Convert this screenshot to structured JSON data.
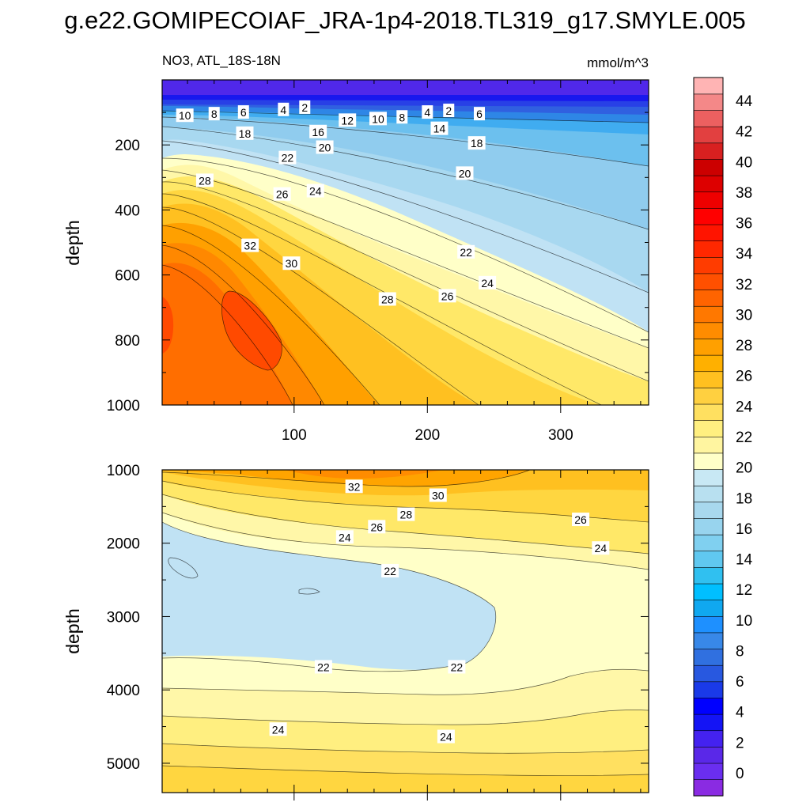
{
  "title": "g.e22.GOMIPECOIAF_JRA-1p4-2018.TL319_g17.SMYLE.005",
  "colors": {
    "palette": [
      "#8a2be2",
      "#6a2ef0",
      "#5a28e8",
      "#4422f0",
      "#1414f5",
      "#0000ff",
      "#1a3ae8",
      "#2858e0",
      "#3070e0",
      "#3888e8",
      "#1e90ff",
      "#10a8f0",
      "#00bfff",
      "#30c0f0",
      "#60c8f0",
      "#80d0f0",
      "#98d4ee",
      "#a8d8ee",
      "#b8e0f0",
      "#c8e8f4",
      "#ffffc8",
      "#fff5a0",
      "#ffef80",
      "#ffe060",
      "#ffd040",
      "#ffc020",
      "#ffb000",
      "#ffa000",
      "#ff8c00",
      "#ff7800",
      "#ff6400",
      "#ff5000",
      "#ff3c00",
      "#ff2800",
      "#ff1400",
      "#ff0000",
      "#ee0000",
      "#dd0000",
      "#cc0000",
      "#d82020",
      "#e24040",
      "#ec6060",
      "#f48888",
      "#ffb4b4"
    ]
  },
  "chart_data": [
    {
      "type": "heatmap",
      "name": "upper-panel",
      "left_title": "NO3, ATL_18S-18N",
      "right_title": "mmol/m^3",
      "ylabel": "depth",
      "xlabel": "",
      "xlim": [
        1,
        366
      ],
      "ylim": [
        1000,
        0
      ],
      "xticks": [
        100,
        200,
        300
      ],
      "yticks": [
        200,
        400,
        600,
        800,
        1000
      ],
      "contour_labels": [
        {
          "text": "10",
          "x": 18,
          "y": 110
        },
        {
          "text": "8",
          "x": 40,
          "y": 105
        },
        {
          "text": "6",
          "x": 62,
          "y": 100
        },
        {
          "text": "4",
          "x": 92,
          "y": 92
        },
        {
          "text": "2",
          "x": 108,
          "y": 85
        },
        {
          "text": "12",
          "x": 140,
          "y": 125
        },
        {
          "text": "10",
          "x": 163,
          "y": 120
        },
        {
          "text": "8",
          "x": 181,
          "y": 115
        },
        {
          "text": "4",
          "x": 200,
          "y": 100
        },
        {
          "text": "2",
          "x": 216,
          "y": 95
        },
        {
          "text": "6",
          "x": 239,
          "y": 105
        },
        {
          "text": "18",
          "x": 63,
          "y": 165
        },
        {
          "text": "16",
          "x": 118,
          "y": 160
        },
        {
          "text": "14",
          "x": 209,
          "y": 150
        },
        {
          "text": "20",
          "x": 123,
          "y": 208
        },
        {
          "text": "18",
          "x": 237,
          "y": 195
        },
        {
          "text": "22",
          "x": 95,
          "y": 240
        },
        {
          "text": "20",
          "x": 228,
          "y": 288
        },
        {
          "text": "28",
          "x": 33,
          "y": 310
        },
        {
          "text": "26",
          "x": 91,
          "y": 352
        },
        {
          "text": "24",
          "x": 116,
          "y": 342
        },
        {
          "text": "22",
          "x": 229,
          "y": 530
        },
        {
          "text": "32",
          "x": 67,
          "y": 510
        },
        {
          "text": "30",
          "x": 98,
          "y": 565
        },
        {
          "text": "24",
          "x": 245,
          "y": 625
        },
        {
          "text": "28",
          "x": 170,
          "y": 675
        },
        {
          "text": "26",
          "x": 215,
          "y": 665
        }
      ]
    },
    {
      "type": "heatmap",
      "name": "lower-panel",
      "ylabel": "depth",
      "xlabel": "",
      "xlim": [
        1,
        366
      ],
      "ylim": [
        5400,
        1000
      ],
      "yticks": [
        1000,
        2000,
        3000,
        4000,
        5000
      ],
      "contour_labels": [
        {
          "text": "32",
          "x": 145,
          "y": 1230
        },
        {
          "text": "30",
          "x": 208,
          "y": 1350
        },
        {
          "text": "28",
          "x": 184,
          "y": 1610
        },
        {
          "text": "26",
          "x": 162,
          "y": 1780
        },
        {
          "text": "24",
          "x": 138,
          "y": 1920
        },
        {
          "text": "26",
          "x": 315,
          "y": 1680
        },
        {
          "text": "24",
          "x": 330,
          "y": 2070
        },
        {
          "text": "22",
          "x": 172,
          "y": 2380
        },
        {
          "text": "22",
          "x": 122,
          "y": 3690
        },
        {
          "text": "22",
          "x": 222,
          "y": 3690
        },
        {
          "text": "24",
          "x": 88,
          "y": 4540
        },
        {
          "text": "24",
          "x": 214,
          "y": 4640
        }
      ]
    },
    {
      "type": "colorbar",
      "name": "colorbar",
      "labels": [
        "0",
        "2",
        "4",
        "6",
        "8",
        "10",
        "12",
        "14",
        "16",
        "18",
        "20",
        "22",
        "24",
        "26",
        "28",
        "30",
        "32",
        "34",
        "36",
        "38",
        "40",
        "42",
        "44"
      ],
      "min": -1,
      "max": 46,
      "step": 1
    }
  ]
}
